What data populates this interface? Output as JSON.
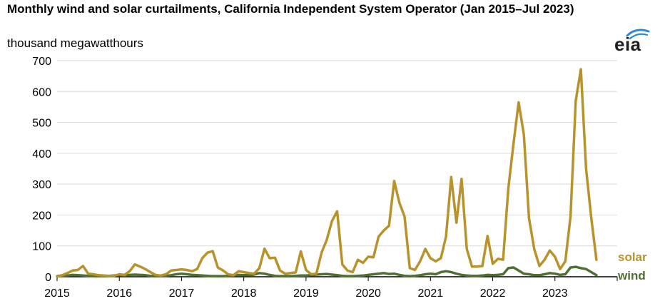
{
  "header": {
    "title": "Monthly wind and solar curtailments, California Independent System Operator (Jan 2015–Jul 2023)",
    "units": "thousand megawatthours",
    "logo_text": "eia"
  },
  "colors": {
    "solar": "#b8922b",
    "wind": "#4e7030",
    "grid": "#d9d9d9",
    "axis": "#000000",
    "logo_arc": "#2b8ad8"
  },
  "chart_data": {
    "type": "line",
    "title": "Monthly wind and solar curtailments, California Independent System Operator (Jan 2015–Jul 2023)",
    "ylabel": "thousand megawatthours",
    "xlabel": "",
    "ylim": [
      0,
      700
    ],
    "xlim": [
      "2015-01",
      "2023-12"
    ],
    "y_ticks": [
      0,
      100,
      200,
      300,
      400,
      500,
      600,
      700
    ],
    "x_ticks": [
      "2015",
      "2016",
      "2017",
      "2018",
      "2019",
      "2020",
      "2021",
      "2022",
      "2023"
    ],
    "grid": "horizontal",
    "start_month": "2015-01",
    "series": [
      {
        "name": "solar",
        "color": "#b8922b",
        "values": [
          2,
          5,
          12,
          20,
          22,
          35,
          10,
          8,
          5,
          4,
          3,
          3,
          8,
          6,
          18,
          40,
          33,
          25,
          15,
          6,
          4,
          8,
          20,
          22,
          24,
          22,
          18,
          25,
          60,
          78,
          83,
          30,
          20,
          8,
          5,
          18,
          15,
          12,
          10,
          28,
          91,
          60,
          62,
          20,
          10,
          12,
          14,
          82,
          22,
          8,
          10,
          78,
          120,
          180,
          212,
          40,
          20,
          15,
          55,
          45,
          65,
          63,
          130,
          150,
          165,
          310,
          240,
          195,
          28,
          22,
          50,
          90,
          60,
          50,
          60,
          130,
          323,
          175,
          317,
          90,
          33,
          33,
          35,
          132,
          42,
          58,
          55,
          285,
          430,
          565,
          460,
          190,
          90,
          35,
          55,
          85,
          65,
          25,
          50,
          195,
          570,
          672,
          350,
          190,
          55
        ]
      },
      {
        "name": "wind",
        "color": "#4e7030",
        "values": [
          2,
          3,
          4,
          6,
          5,
          4,
          3,
          2,
          2,
          2,
          3,
          4,
          5,
          4,
          6,
          7,
          6,
          5,
          3,
          2,
          2,
          3,
          5,
          8,
          10,
          8,
          6,
          5,
          4,
          3,
          2,
          2,
          2,
          3,
          4,
          6,
          5,
          5,
          7,
          12,
          10,
          6,
          3,
          2,
          2,
          2,
          3,
          4,
          4,
          5,
          7,
          8,
          9,
          7,
          5,
          3,
          2,
          2,
          3,
          4,
          6,
          8,
          10,
          12,
          9,
          10,
          6,
          3,
          2,
          3,
          5,
          8,
          10,
          8,
          15,
          18,
          15,
          10,
          6,
          4,
          3,
          3,
          4,
          6,
          5,
          6,
          8,
          28,
          30,
          20,
          10,
          8,
          5,
          5,
          8,
          12,
          10,
          6,
          8,
          30,
          32,
          28,
          25,
          15,
          5
        ]
      }
    ]
  }
}
